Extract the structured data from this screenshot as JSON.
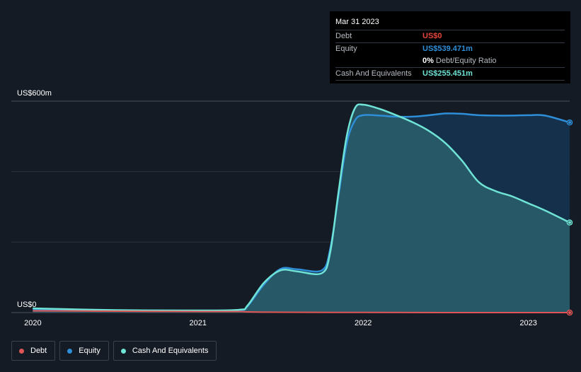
{
  "chart_data": {
    "type": "area",
    "ylim": [
      0,
      600
    ],
    "y_tick_labels": [
      {
        "value": 600,
        "label": "US$600m"
      },
      {
        "value": 0,
        "label": "US$0"
      }
    ],
    "x_ticks": [
      {
        "value": 2020,
        "label": "2020"
      },
      {
        "value": 2021,
        "label": "2021"
      },
      {
        "value": 2022,
        "label": "2022"
      },
      {
        "value": 2023,
        "label": "2023"
      }
    ],
    "xlim": [
      2019.87,
      2023.25
    ],
    "grid": true,
    "legend_position": "bottom-left",
    "series": [
      {
        "name": "Equity",
        "color": "#2e8fd8",
        "fill": "#143452",
        "x": [
          2020.0,
          2020.5,
          2021.0,
          2021.25,
          2021.3,
          2021.4,
          2021.5,
          2021.6,
          2021.75,
          2021.8,
          2021.85,
          2021.9,
          2021.95,
          2022.0,
          2022.1,
          2022.2,
          2022.3,
          2022.4,
          2022.5,
          2022.6,
          2022.7,
          2022.8,
          2022.9,
          2023.0,
          2023.1,
          2023.25
        ],
        "values": [
          10,
          6,
          5,
          7,
          18,
          80,
          124,
          123,
          120,
          180,
          330,
          480,
          545,
          560,
          559,
          556,
          556,
          560,
          565,
          564,
          560,
          559,
          559,
          560,
          559,
          539.5
        ]
      },
      {
        "name": "Cash And Equivalents",
        "color": "#6fe3d5",
        "fill": "#2d6670",
        "x": [
          2020.0,
          2020.5,
          2021.0,
          2021.25,
          2021.3,
          2021.4,
          2021.5,
          2021.6,
          2021.75,
          2021.8,
          2021.85,
          2021.9,
          2021.95,
          2022.0,
          2022.1,
          2022.2,
          2022.3,
          2022.4,
          2022.5,
          2022.6,
          2022.7,
          2022.8,
          2022.9,
          2023.0,
          2023.1,
          2023.25
        ],
        "values": [
          12,
          7,
          6,
          8,
          20,
          85,
          120,
          117,
          112,
          170,
          340,
          500,
          580,
          590,
          578,
          560,
          540,
          515,
          480,
          430,
          370,
          345,
          330,
          310,
          290,
          255.5
        ]
      },
      {
        "name": "Debt",
        "color": "#e05555",
        "x": [
          2020.0,
          2020.5,
          2021.0,
          2021.25,
          2021.3,
          2021.5,
          2022.0,
          2022.5,
          2023.0,
          2023.25
        ],
        "values": [
          5,
          4,
          3,
          3,
          2,
          1,
          0.5,
          0,
          0,
          0
        ]
      }
    ],
    "tooltip": {
      "date": "Mar 31 2023",
      "rows": [
        {
          "label": "Debt",
          "value": "US$0",
          "color": "#e8453c"
        },
        {
          "label": "Equity",
          "value": "US$539.471m",
          "color": "#2e8fd8"
        }
      ],
      "ratio": {
        "percent": "0%",
        "label": "Debt/Equity Ratio"
      },
      "cash": {
        "label": "Cash And Equivalents",
        "value": "US$255.451m",
        "color": "#6fe3d5"
      }
    },
    "legend": [
      {
        "label": "Debt",
        "color": "#e05555"
      },
      {
        "label": "Equity",
        "color": "#2e8fd8"
      },
      {
        "label": "Cash And Equivalents",
        "color": "#6fe3d5"
      }
    ]
  }
}
